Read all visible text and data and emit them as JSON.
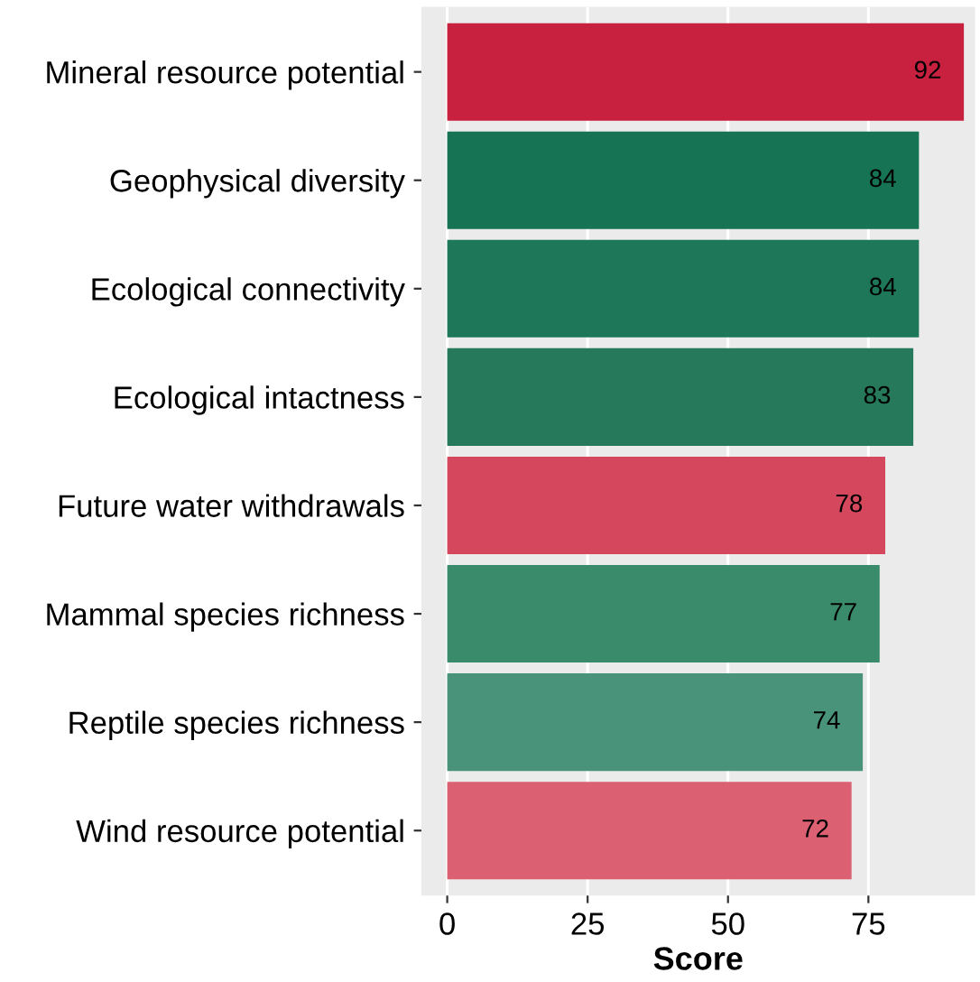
{
  "chart_data": {
    "type": "bar",
    "orientation": "horizontal",
    "xlabel": "Score",
    "categories": [
      "Mineral resource potential",
      "Geophysical diversity",
      "Ecological connectivity",
      "Ecological intactness",
      "Future water withdrawals",
      "Mammal species richness",
      "Reptile species richness",
      "Wind resource potential"
    ],
    "values": [
      92,
      84,
      84,
      83,
      78,
      77,
      74,
      72
    ],
    "colors": [
      "#c8203f",
      "#167354",
      "#1e7758",
      "#26795b",
      "#d4475c",
      "#3a8a6c",
      "#48937a",
      "#db6172"
    ],
    "xlim": [
      -4.6,
      94
    ],
    "xticks": [
      0,
      25,
      50,
      75
    ],
    "grid": "x",
    "data_labels": true
  }
}
